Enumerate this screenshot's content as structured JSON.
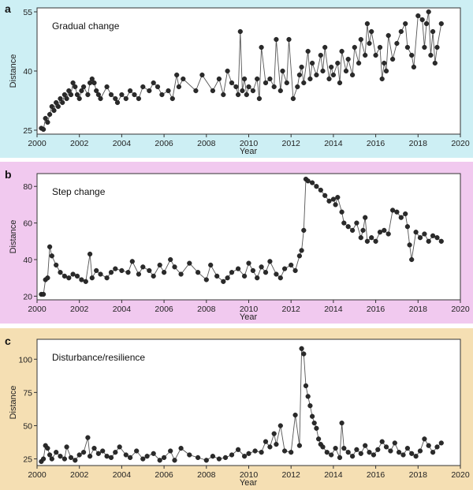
{
  "colors": {
    "panel_a_bg": "#cdeff4",
    "panel_b_bg": "#f1c9ef",
    "panel_c_bg": "#f5dfb3",
    "plot_bg": "#ffffff",
    "marker": "#2a2a2a",
    "line": "#555555"
  },
  "chart_data": [
    {
      "type": "line",
      "panel_label": "a",
      "title": "Gradual change",
      "xlabel": "Year",
      "ylabel": "Distance",
      "xlim": [
        2000,
        2020
      ],
      "ylim": [
        24,
        56
      ],
      "xticks": [
        2000,
        2002,
        2004,
        2006,
        2008,
        2010,
        2012,
        2014,
        2016,
        2018,
        2020
      ],
      "yticks": [
        25,
        40,
        55
      ],
      "series": [
        {
          "x": [
            2000.2,
            2000.3,
            2000.4,
            2000.5,
            2000.6,
            2000.7,
            2000.8,
            2000.9,
            2001.0,
            2001.1,
            2001.2,
            2001.3,
            2001.4,
            2001.5,
            2001.6,
            2001.7,
            2001.8,
            2001.9,
            2002.0,
            2002.1,
            2002.2,
            2002.4,
            2002.5,
            2002.6,
            2002.7,
            2002.8,
            2002.9,
            2003.0,
            2003.3,
            2003.5,
            2003.7,
            2003.8,
            2004.0,
            2004.2,
            2004.4,
            2004.6,
            2004.8,
            2005.0,
            2005.3,
            2005.5,
            2005.7,
            2005.9,
            2006.2,
            2006.4,
            2006.6,
            2006.7,
            2006.9,
            2007.5,
            2007.8,
            2008.3,
            2008.6,
            2008.8,
            2009.0,
            2009.2,
            2009.4,
            2009.5,
            2009.6,
            2009.7,
            2009.8,
            2009.9,
            2010.0,
            2010.2,
            2010.4,
            2010.5,
            2010.6,
            2010.8,
            2011.0,
            2011.2,
            2011.3,
            2011.5,
            2011.6,
            2011.8,
            2011.9,
            2012.1,
            2012.3,
            2012.4,
            2012.5,
            2012.6,
            2012.8,
            2012.9,
            2013.0,
            2013.2,
            2013.4,
            2013.5,
            2013.6,
            2013.8,
            2013.9,
            2014.0,
            2014.2,
            2014.3,
            2014.4,
            2014.6,
            2014.7,
            2014.9,
            2015.0,
            2015.2,
            2015.3,
            2015.5,
            2015.6,
            2015.7,
            2015.8,
            2016.0,
            2016.2,
            2016.3,
            2016.4,
            2016.5,
            2016.6,
            2016.8,
            2017.0,
            2017.2,
            2017.4,
            2017.5,
            2017.7,
            2017.8,
            2018.0,
            2018.2,
            2018.3,
            2018.4,
            2018.5,
            2018.6,
            2018.7,
            2018.8,
            2018.9,
            2019.1
          ],
          "y": [
            25.5,
            25.2,
            28,
            27,
            29,
            31,
            30,
            32,
            31,
            33,
            32,
            34,
            33,
            35,
            34,
            37,
            36,
            34,
            33,
            35,
            36,
            34,
            37,
            38,
            37,
            35,
            34,
            33,
            36,
            34,
            33,
            32,
            34,
            33,
            35,
            34,
            33,
            36,
            35,
            37,
            36,
            34,
            35,
            33,
            39,
            36,
            38,
            35,
            39,
            35,
            38,
            34,
            40,
            37,
            36,
            34,
            50,
            35,
            38,
            34,
            36,
            35,
            38,
            33,
            46,
            37,
            38,
            36,
            48,
            35,
            40,
            37,
            48,
            33,
            36,
            39,
            41,
            37,
            45,
            38,
            42,
            39,
            44,
            40,
            46,
            38,
            41,
            39,
            42,
            37,
            45,
            40,
            43,
            39,
            46,
            42,
            48,
            44,
            52,
            47,
            50,
            44,
            46,
            38,
            42,
            40,
            49,
            43,
            47,
            50,
            52,
            46,
            44,
            41,
            54,
            53,
            46,
            52,
            55,
            44,
            50,
            42,
            46,
            52
          ]
        }
      ]
    },
    {
      "type": "line",
      "panel_label": "b",
      "title": "Step change",
      "xlabel": "Year",
      "ylabel": "Distance",
      "xlim": [
        2000,
        2020
      ],
      "ylim": [
        18,
        87
      ],
      "xticks": [
        2000,
        2002,
        2004,
        2006,
        2008,
        2010,
        2012,
        2014,
        2016,
        2018,
        2020
      ],
      "yticks": [
        20,
        40,
        60,
        80
      ],
      "series": [
        {
          "x": [
            2000.2,
            2000.3,
            2000.4,
            2000.5,
            2000.6,
            2000.7,
            2000.9,
            2001.1,
            2001.3,
            2001.5,
            2001.7,
            2001.9,
            2002.1,
            2002.3,
            2002.5,
            2002.6,
            2002.8,
            2003.0,
            2003.3,
            2003.5,
            2003.7,
            2004.0,
            2004.3,
            2004.5,
            2004.8,
            2005.0,
            2005.3,
            2005.5,
            2005.8,
            2006.0,
            2006.3,
            2006.5,
            2006.8,
            2007.2,
            2007.6,
            2008.0,
            2008.2,
            2008.5,
            2008.8,
            2009.0,
            2009.2,
            2009.5,
            2009.8,
            2010.0,
            2010.2,
            2010.4,
            2010.6,
            2010.8,
            2011.0,
            2011.3,
            2011.5,
            2011.7,
            2012.0,
            2012.2,
            2012.4,
            2012.5,
            2012.6,
            2012.7,
            2012.8,
            2013.0,
            2013.2,
            2013.4,
            2013.6,
            2013.8,
            2014.0,
            2014.1,
            2014.2,
            2014.4,
            2014.5,
            2014.7,
            2014.9,
            2015.1,
            2015.3,
            2015.4,
            2015.5,
            2015.6,
            2015.8,
            2016.0,
            2016.2,
            2016.4,
            2016.6,
            2016.8,
            2017.0,
            2017.2,
            2017.4,
            2017.5,
            2017.6,
            2017.7,
            2017.9,
            2018.1,
            2018.3,
            2018.5,
            2018.7,
            2018.9,
            2019.1
          ],
          "y": [
            21,
            21,
            29,
            30,
            47,
            42,
            37,
            33,
            31,
            30,
            32,
            31,
            29,
            28,
            43,
            30,
            34,
            32,
            30,
            33,
            35,
            34,
            33,
            39,
            32,
            36,
            34,
            31,
            37,
            33,
            40,
            36,
            32,
            38,
            33,
            29,
            37,
            31,
            28,
            30,
            33,
            35,
            31,
            38,
            34,
            30,
            36,
            33,
            39,
            32,
            30,
            35,
            37,
            34,
            42,
            45,
            56,
            84,
            83,
            82,
            80,
            78,
            75,
            72,
            73,
            70,
            74,
            66,
            60,
            58,
            56,
            60,
            52,
            56,
            63,
            50,
            52,
            50,
            55,
            56,
            54,
            67,
            66,
            63,
            65,
            58,
            48,
            40,
            55,
            52,
            54,
            50,
            53,
            52,
            50
          ]
        }
      ]
    },
    {
      "type": "line",
      "panel_label": "c",
      "title": "Disturbance/resilience",
      "xlabel": "Year",
      "ylabel": "Distance",
      "xlim": [
        2000,
        2020
      ],
      "ylim": [
        20,
        115
      ],
      "xticks": [
        2000,
        2002,
        2004,
        2006,
        2008,
        2010,
        2012,
        2014,
        2016,
        2018,
        2020
      ],
      "yticks": [
        25,
        50,
        75,
        100
      ],
      "series": [
        {
          "x": [
            2000.2,
            2000.3,
            2000.4,
            2000.5,
            2000.6,
            2000.7,
            2000.9,
            2001.1,
            2001.3,
            2001.4,
            2001.6,
            2001.8,
            2002.0,
            2002.2,
            2002.4,
            2002.5,
            2002.7,
            2002.9,
            2003.1,
            2003.3,
            2003.5,
            2003.7,
            2003.9,
            2004.2,
            2004.4,
            2004.7,
            2005.0,
            2005.2,
            2005.5,
            2005.8,
            2006.0,
            2006.3,
            2006.5,
            2006.8,
            2007.2,
            2007.6,
            2008.0,
            2008.3,
            2008.6,
            2008.9,
            2009.2,
            2009.5,
            2009.8,
            2010.0,
            2010.3,
            2010.6,
            2010.8,
            2011.0,
            2011.2,
            2011.3,
            2011.5,
            2011.7,
            2012.0,
            2012.2,
            2012.4,
            2012.5,
            2012.6,
            2012.7,
            2012.8,
            2012.9,
            2013.0,
            2013.1,
            2013.2,
            2013.3,
            2013.4,
            2013.5,
            2013.7,
            2013.9,
            2014.1,
            2014.3,
            2014.4,
            2014.5,
            2014.7,
            2014.9,
            2015.1,
            2015.3,
            2015.5,
            2015.7,
            2015.9,
            2016.1,
            2016.3,
            2016.5,
            2016.7,
            2016.9,
            2017.1,
            2017.3,
            2017.5,
            2017.7,
            2017.9,
            2018.1,
            2018.3,
            2018.5,
            2018.7,
            2018.9,
            2019.1
          ],
          "y": [
            23,
            25,
            35,
            33,
            28,
            25,
            30,
            27,
            25,
            34,
            26,
            24,
            28,
            30,
            41,
            27,
            33,
            29,
            31,
            27,
            26,
            30,
            34,
            28,
            26,
            31,
            25,
            27,
            29,
            24,
            26,
            31,
            24,
            33,
            28,
            26,
            24,
            27,
            25,
            26,
            28,
            32,
            27,
            29,
            31,
            30,
            38,
            34,
            44,
            36,
            50,
            31,
            30,
            58,
            35,
            108,
            104,
            80,
            72,
            65,
            57,
            52,
            48,
            40,
            36,
            34,
            30,
            28,
            33,
            26,
            52,
            33,
            30,
            27,
            32,
            29,
            35,
            30,
            28,
            32,
            38,
            34,
            31,
            37,
            30,
            28,
            33,
            29,
            27,
            31,
            40,
            35,
            30,
            34,
            37
          ]
        }
      ]
    }
  ]
}
